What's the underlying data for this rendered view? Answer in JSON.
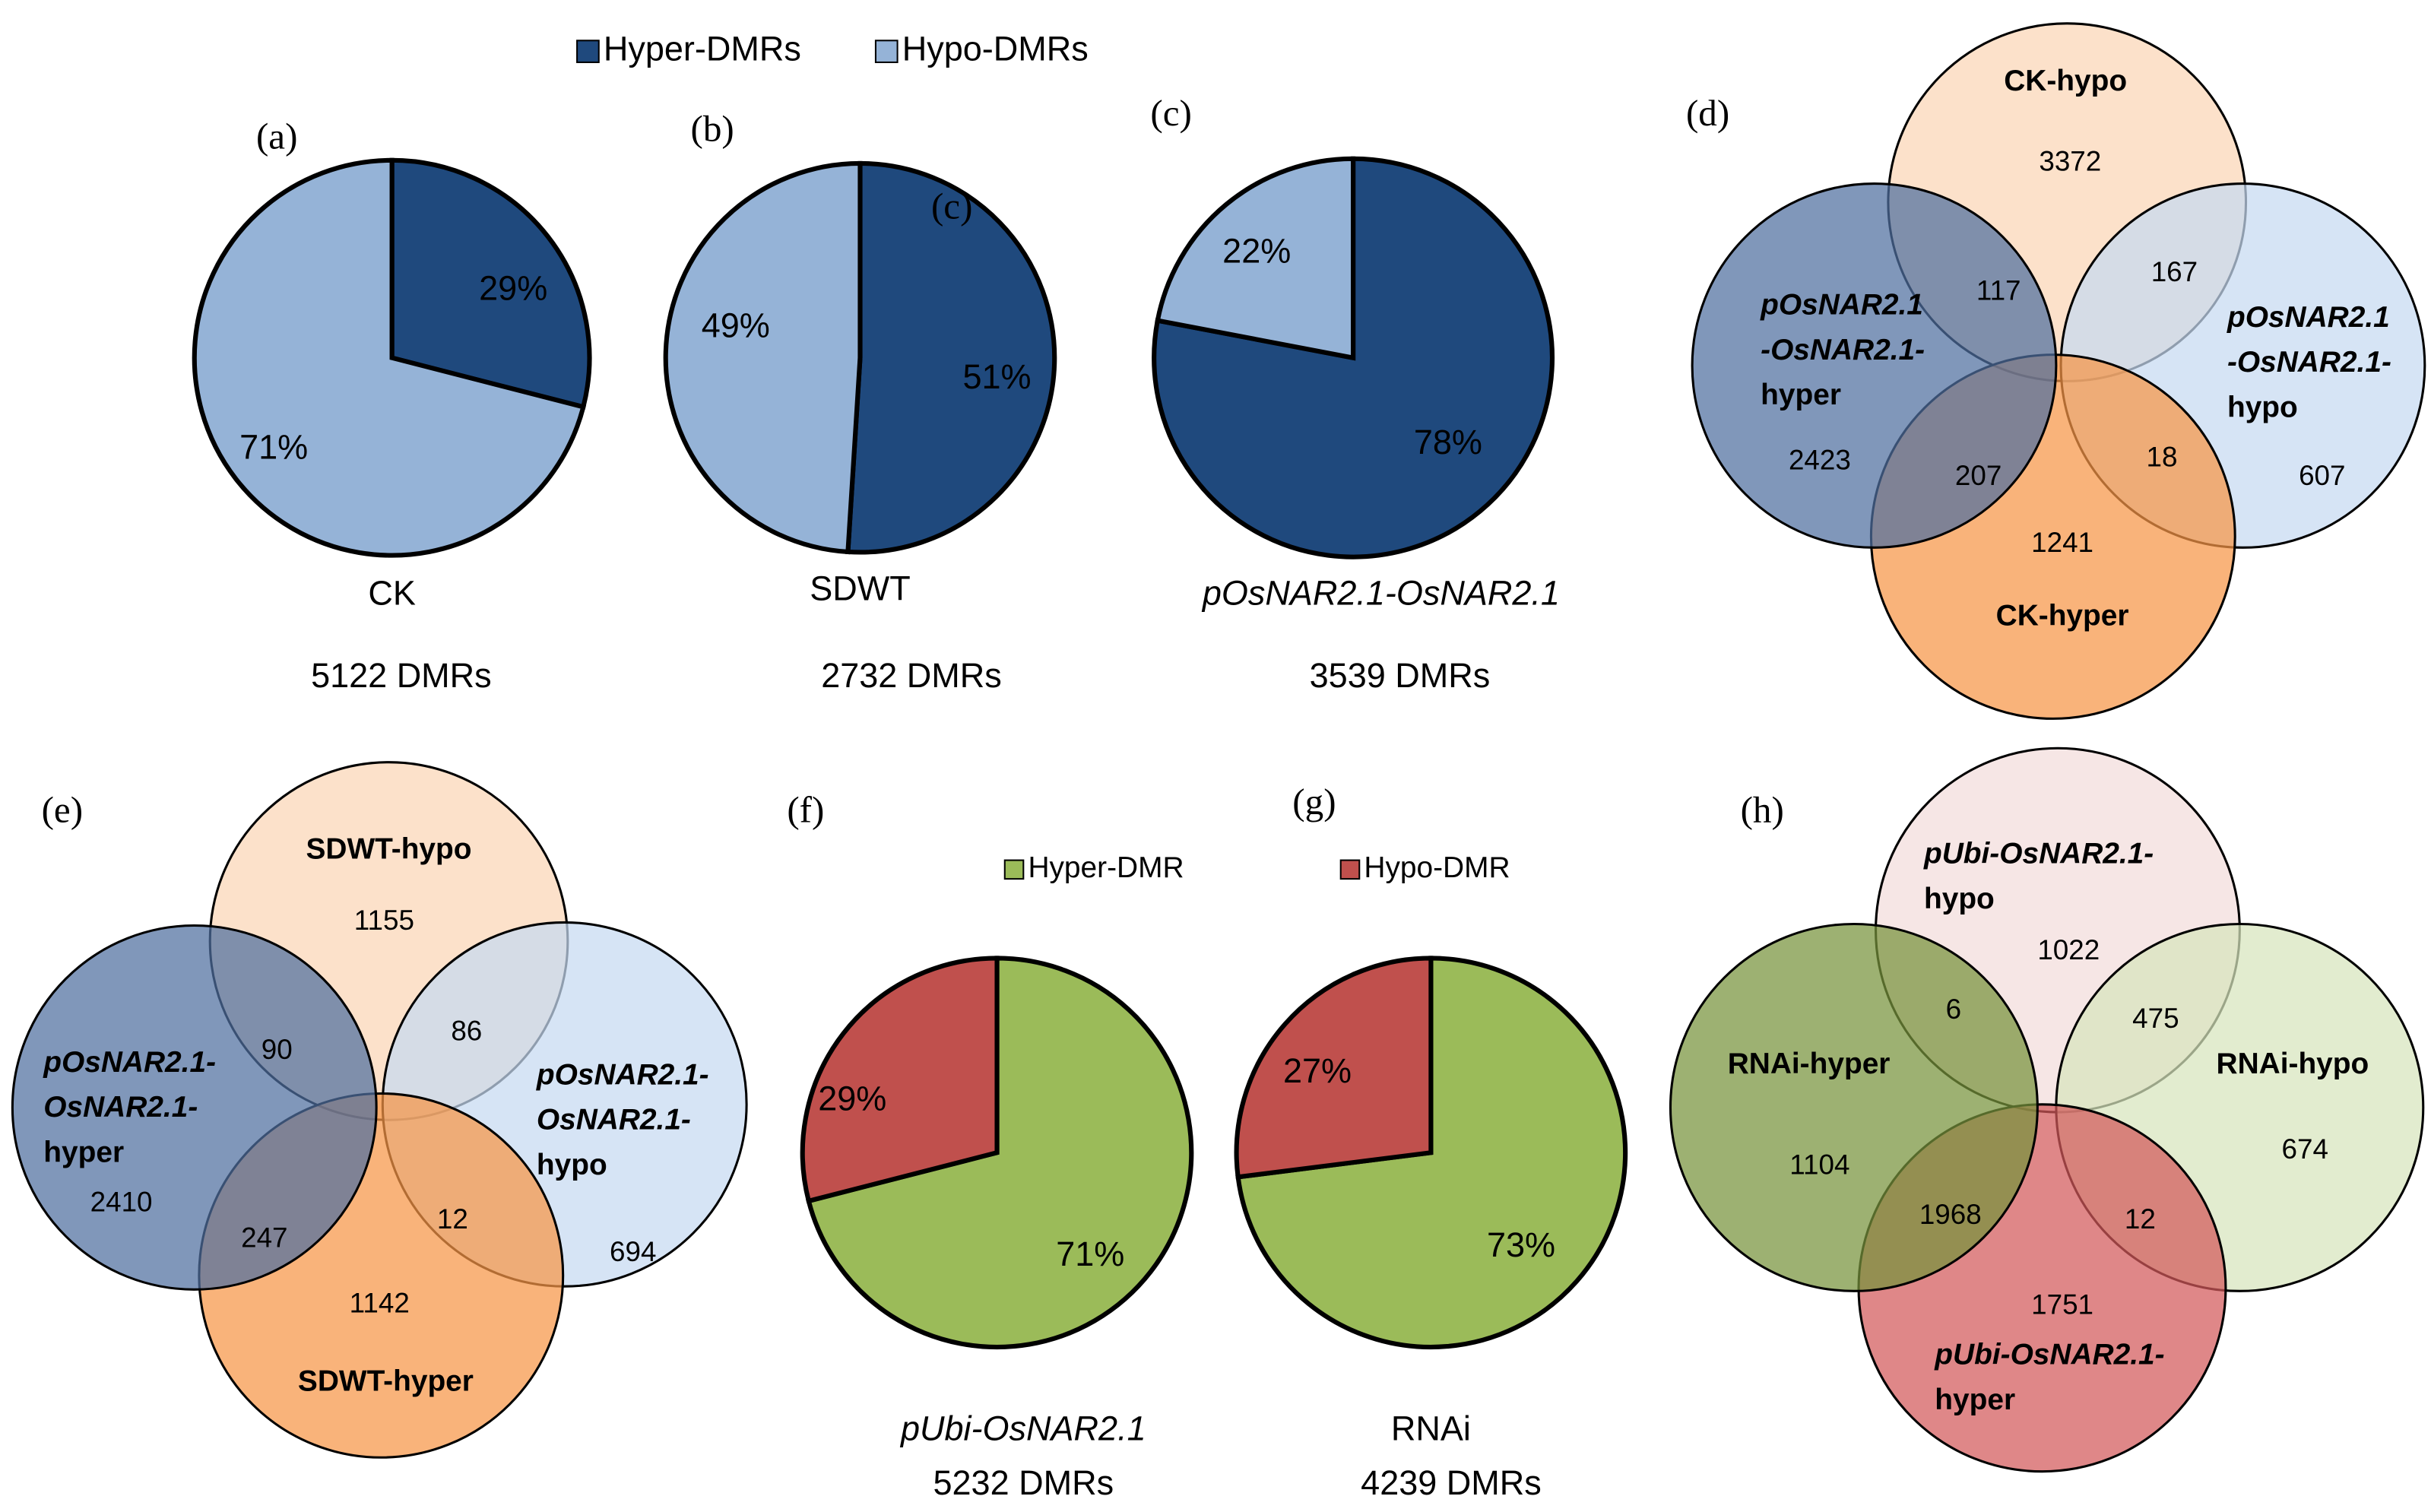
{
  "legends": [
    {
      "items": [
        {
          "name": "Hyper-DMRs",
          "color": "#1f497d"
        },
        {
          "name": "Hypo-DMRs",
          "color": "#95b3d7"
        }
      ]
    },
    {
      "items": [
        {
          "name": "Hyper-DMR",
          "color": "#9bbb59"
        },
        {
          "name": "Hypo-DMR",
          "color": "#c0504d"
        }
      ]
    }
  ],
  "chart_data": [
    {
      "type": "pie",
      "panel": "(a)",
      "values": [
        29,
        71
      ],
      "value_labels": [
        "29%",
        "71%"
      ],
      "colors": [
        "#1f497d",
        "#95b3d7"
      ],
      "caption": "CK",
      "total": "5122 DMRs"
    },
    {
      "type": "pie",
      "panel": "(b)",
      "annotation": "(c)",
      "values": [
        51,
        49
      ],
      "value_labels": [
        "51%",
        "49%"
      ],
      "colors": [
        "#1f497d",
        "#95b3d7"
      ],
      "caption": "SDWT",
      "total": "2732 DMRs"
    },
    {
      "type": "pie",
      "panel": "(c)",
      "values": [
        78,
        22
      ],
      "value_labels": [
        "78%",
        "22%"
      ],
      "colors": [
        "#1f497d",
        "#95b3d7"
      ],
      "caption": "pOsNAR2.1-OsNAR2.1",
      "total": "3539 DMRs"
    },
    {
      "type": "venn",
      "panel": "(d)",
      "sets": [
        {
          "label": [
            "CK-hypo"
          ],
          "color": "#fbd5b5"
        },
        {
          "label": [
            "pOsNAR2.1",
            "-OsNAR2.1-",
            "hypo"
          ],
          "color": "#c6d9f1"
        },
        {
          "label": [
            "CK-hyper"
          ],
          "color": "#f79646"
        },
        {
          "label": [
            "pOsNAR2.1",
            "-OsNAR2.1-",
            "hyper"
          ],
          "color": "#4f6f9f"
        }
      ],
      "regions": [
        3372,
        117,
        167,
        2423,
        207,
        18,
        607,
        1241
      ]
    },
    {
      "type": "venn",
      "panel": "(e)",
      "sets": [
        {
          "label": [
            "SDWT-hypo"
          ],
          "color": "#fbd5b5"
        },
        {
          "label": [
            "pOsNAR2.1-",
            "OsNAR2.1-",
            "hypo"
          ],
          "color": "#c6d9f1"
        },
        {
          "label": [
            "SDWT-hyper"
          ],
          "color": "#f79646"
        },
        {
          "label": [
            "pOsNAR2.1-",
            "OsNAR2.1-",
            "hyper"
          ],
          "color": "#4f6f9f"
        }
      ],
      "regions": [
        1155,
        90,
        86,
        2410,
        247,
        12,
        694,
        1142
      ]
    },
    {
      "type": "pie",
      "panel": "(f)",
      "values": [
        71,
        29
      ],
      "value_labels": [
        "71%",
        "29%"
      ],
      "colors": [
        "#9bbb59",
        "#c0504d"
      ],
      "caption": "pUbi-OsNAR2.1",
      "total": "5232 DMRs"
    },
    {
      "type": "pie",
      "panel": "(g)",
      "values": [
        73,
        27
      ],
      "value_labels": [
        "73%",
        "27%"
      ],
      "colors": [
        "#9bbb59",
        "#c0504d"
      ],
      "caption": "RNAi",
      "total": "4239 DMRs"
    },
    {
      "type": "venn",
      "panel": "(h)",
      "sets": [
        {
          "label": [
            "pUbi-OsNAR2.1-",
            "hypo"
          ],
          "color": "#f2dcdb"
        },
        {
          "label": [
            "RNAi-hypo"
          ],
          "color": "#d7e4bd"
        },
        {
          "label": [
            "pUbi-OsNAR2.1-",
            "hyper"
          ],
          "color": "#d2595a"
        },
        {
          "label": [
            "RNAi-hyper"
          ],
          "color": "#77933c"
        }
      ],
      "regions": [
        1022,
        6,
        475,
        1104,
        1968,
        12,
        674,
        1751
      ]
    }
  ]
}
